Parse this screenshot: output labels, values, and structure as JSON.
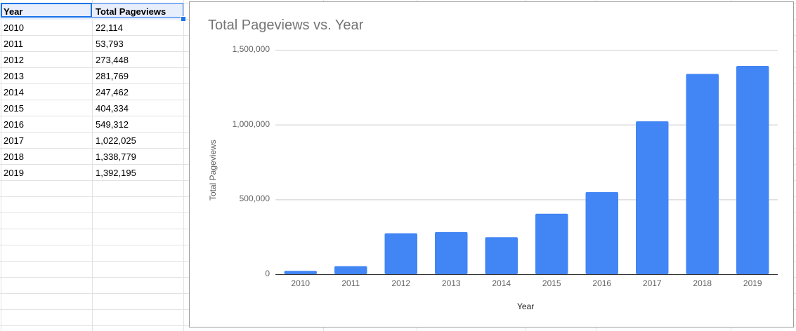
{
  "sheet": {
    "headers": [
      "Year",
      "Total Pageviews"
    ],
    "rows": [
      [
        "2010",
        "22,114"
      ],
      [
        "2011",
        "53,793"
      ],
      [
        "2012",
        "273,448"
      ],
      [
        "2013",
        "281,769"
      ],
      [
        "2014",
        "247,462"
      ],
      [
        "2015",
        "404,334"
      ],
      [
        "2016",
        "549,312"
      ],
      [
        "2017",
        "1,022,025"
      ],
      [
        "2018",
        "1,338,779"
      ],
      [
        "2019",
        "1,392,195"
      ]
    ]
  },
  "colors": {
    "bar": "#4285f4",
    "selection": "#1a73e8",
    "gridline": "#cccccc"
  },
  "chart_data": {
    "type": "bar",
    "title": "Total Pageviews vs. Year",
    "xlabel": "Year",
    "ylabel": "Total Pageviews",
    "categories": [
      "2010",
      "2011",
      "2012",
      "2013",
      "2014",
      "2015",
      "2016",
      "2017",
      "2018",
      "2019"
    ],
    "values": [
      22114,
      53793,
      273448,
      281769,
      247462,
      404334,
      549312,
      1022025,
      1338779,
      1392195
    ],
    "ylim": [
      0,
      1500000
    ],
    "yticks": [
      "0",
      "500,000",
      "1,000,000",
      "1,500,000"
    ],
    "ytick_values": [
      0,
      500000,
      1000000,
      1500000
    ],
    "grid": true,
    "legend": "none"
  }
}
